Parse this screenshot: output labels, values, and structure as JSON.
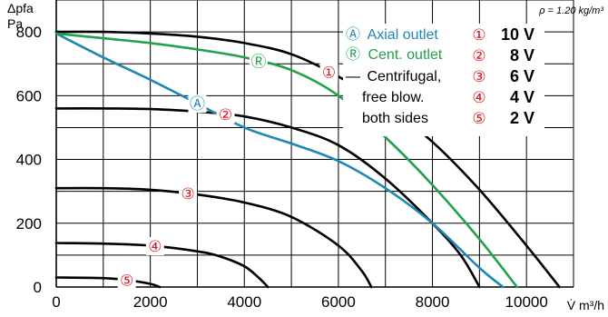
{
  "chart_data": {
    "type": "line",
    "title": "",
    "ylabel_line1": "Δpfa",
    "ylabel_line2": "Pa",
    "xlabel": "V̇ m³/h",
    "note": "ρ = 1.20 kg/m³",
    "xlim": [
      0,
      11000
    ],
    "ylim": [
      0,
      900
    ],
    "xticks": [
      0,
      2000,
      4000,
      6000,
      8000,
      10000
    ],
    "yticks": [
      0,
      200,
      400,
      600,
      800
    ],
    "grid": true,
    "colors": {
      "axial": "#1e88b4",
      "centrifugal_outlet": "#22a04b",
      "free_blow": "#000000",
      "marker": "#d71920"
    },
    "series": [
      {
        "name": "Ⓐ Axial outlet",
        "marker": "Ⓐ",
        "color_key": "axial",
        "x": [
          0,
          1000,
          2000,
          3000,
          4000,
          5000,
          6000,
          7000,
          8000,
          9000,
          9500
        ],
        "y": [
          795,
          720,
          650,
          575,
          500,
          450,
          395,
          310,
          200,
          60,
          0
        ]
      },
      {
        "name": "Ⓡ Cent. outlet",
        "marker": "Ⓡ",
        "color_key": "centrifugal_outlet",
        "x": [
          0,
          1000,
          2000,
          3000,
          4000,
          5000,
          6000,
          7000,
          8000,
          9000,
          9800
        ],
        "y": [
          795,
          780,
          765,
          745,
          720,
          680,
          600,
          470,
          320,
          150,
          0
        ]
      },
      {
        "name": "10 V",
        "marker": "①",
        "color_key": "free_blow",
        "x": [
          0,
          1000,
          2000,
          3000,
          4000,
          5000,
          6000,
          7000,
          8000,
          9000,
          10000,
          10700
        ],
        "y": [
          800,
          800,
          795,
          785,
          765,
          730,
          660,
          570,
          455,
          305,
          130,
          0
        ]
      },
      {
        "name": "8 V",
        "marker": "②",
        "color_key": "free_blow",
        "x": [
          0,
          1000,
          2000,
          3000,
          4000,
          5000,
          6000,
          7000,
          8000,
          8600,
          9000
        ],
        "y": [
          560,
          560,
          558,
          550,
          535,
          500,
          445,
          340,
          200,
          100,
          0
        ]
      },
      {
        "name": "6 V",
        "marker": "③",
        "color_key": "free_blow",
        "x": [
          0,
          1000,
          2000,
          3000,
          4000,
          5000,
          6000,
          6500,
          6700
        ],
        "y": [
          310,
          310,
          305,
          290,
          265,
          220,
          130,
          50,
          0
        ]
      },
      {
        "name": "4 V",
        "marker": "④",
        "color_key": "free_blow",
        "x": [
          0,
          1000,
          2000,
          3000,
          3500,
          4000,
          4300,
          4500
        ],
        "y": [
          138,
          136,
          130,
          112,
          95,
          65,
          30,
          0
        ]
      },
      {
        "name": "2 V",
        "marker": "⑤",
        "color_key": "free_blow",
        "x": [
          0,
          1000,
          1500,
          2000,
          2200
        ],
        "y": [
          30,
          28,
          22,
          10,
          0
        ]
      }
    ],
    "legend": {
      "placement": "top-right",
      "entries": [
        {
          "symbol": "Ⓐ",
          "label": "Axial outlet",
          "color_key": "axial"
        },
        {
          "symbol": "Ⓡ",
          "label": "Cent. outlet",
          "color_key": "centrifugal_outlet"
        },
        {
          "symbol": "—",
          "label": "Centrifugal,",
          "color_key": "free_blow"
        },
        {
          "symbol": "",
          "label": "free blow.",
          "color_key": "free_blow"
        },
        {
          "symbol": "",
          "label": "both sides",
          "color_key": "free_blow"
        }
      ],
      "voltages": [
        {
          "symbol": "①",
          "label": "10 V"
        },
        {
          "symbol": "②",
          "label": "8 V"
        },
        {
          "symbol": "③",
          "label": "6 V"
        },
        {
          "symbol": "④",
          "label": "4 V"
        },
        {
          "symbol": "⑤",
          "label": "2 V"
        }
      ]
    }
  }
}
